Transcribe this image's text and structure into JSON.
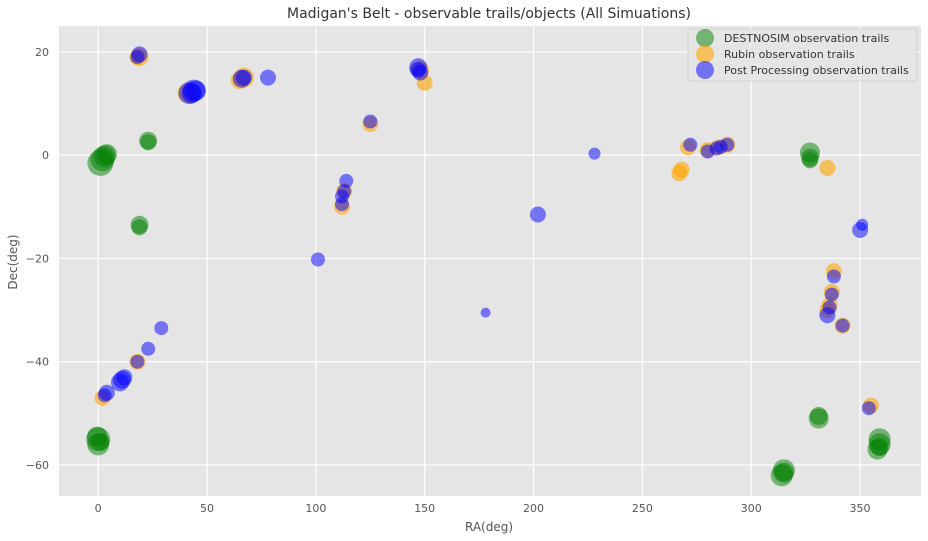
{
  "chart_data": {
    "type": "scatter",
    "title": "Madigan's Belt - observable trails/objects (All Simuations)",
    "xlabel": "RA(deg)",
    "ylabel": "Dec(deg)",
    "xlim": [
      -18,
      378
    ],
    "ylim": [
      -66,
      25
    ],
    "xticks": [
      0,
      50,
      100,
      150,
      200,
      250,
      300,
      350
    ],
    "yticks": [
      -60,
      -40,
      -20,
      0,
      20
    ],
    "grid": true,
    "legend_position": "top-right",
    "series": [
      {
        "name": "DESTNOSIM observation trails",
        "color": "#008000",
        "alpha": 0.5,
        "points": [
          [
            1,
            -1.5,
            13
          ],
          [
            2,
            -0.8,
            12
          ],
          [
            3,
            -0.2,
            11
          ],
          [
            4,
            0.2,
            10
          ],
          [
            23,
            2.8,
            9
          ],
          [
            23,
            2.5,
            8
          ],
          [
            19,
            -13.5,
            9
          ],
          [
            19,
            -14,
            8
          ],
          [
            0,
            -55,
            12
          ],
          [
            0,
            -56,
            11
          ],
          [
            -0.5,
            -54.5,
            10
          ],
          [
            1,
            -55.5,
            9
          ],
          [
            327,
            0.5,
            10
          ],
          [
            327,
            -0.5,
            9
          ],
          [
            327,
            -1,
            8
          ],
          [
            331,
            -51,
            10
          ],
          [
            331,
            -50.5,
            9
          ],
          [
            315,
            -61,
            11
          ],
          [
            314,
            -62,
            11
          ],
          [
            315,
            -61.5,
            10
          ],
          [
            359,
            -55,
            11
          ],
          [
            359,
            -56,
            11
          ],
          [
            358,
            -57,
            10
          ],
          [
            359,
            -56.5,
            9
          ]
        ]
      },
      {
        "name": "Rubin observation trails",
        "color": "#FFA500",
        "alpha": 0.6,
        "points": [
          [
            2,
            -47,
            8
          ],
          [
            18,
            -40,
            8
          ],
          [
            19,
            19,
            9
          ],
          [
            18,
            19,
            8
          ],
          [
            41,
            12,
            10
          ],
          [
            67,
            15,
            10
          ],
          [
            65,
            14.5,
            9
          ],
          [
            148,
            16.5,
            9
          ],
          [
            150,
            14,
            8
          ],
          [
            112,
            -10,
            8
          ],
          [
            113,
            -7,
            8
          ],
          [
            125,
            6,
            8
          ],
          [
            267,
            -3.5,
            8
          ],
          [
            268,
            -2.8,
            8
          ],
          [
            271,
            1.5,
            8
          ],
          [
            280,
            1,
            8
          ],
          [
            285,
            1.5,
            8
          ],
          [
            289,
            2,
            8
          ],
          [
            335,
            -2.5,
            8
          ],
          [
            338,
            -22.5,
            8
          ],
          [
            336,
            -29,
            8
          ],
          [
            337,
            -26.5,
            8
          ],
          [
            335,
            -30,
            8
          ],
          [
            342,
            -33,
            8
          ],
          [
            355,
            -48.5,
            8
          ]
        ]
      },
      {
        "name": "Post Processing observation trails",
        "color": "#0000FF",
        "alpha": 0.5,
        "points": [
          [
            4,
            -46,
            8
          ],
          [
            3,
            -46.5,
            7
          ],
          [
            10,
            -44,
            9
          ],
          [
            11,
            -43.5,
            9
          ],
          [
            12,
            -43,
            8
          ],
          [
            18,
            -40,
            7
          ],
          [
            23,
            -37.5,
            7
          ],
          [
            29,
            -33.5,
            7
          ],
          [
            19,
            19.5,
            8
          ],
          [
            18,
            19,
            7
          ],
          [
            42,
            12,
            11
          ],
          [
            44,
            12.5,
            11
          ],
          [
            43,
            12,
            10
          ],
          [
            45,
            12.5,
            10
          ],
          [
            66,
            14.8,
            9
          ],
          [
            67,
            15,
            8
          ],
          [
            78,
            15,
            8
          ],
          [
            147,
            17,
            9
          ],
          [
            147,
            16.5,
            8
          ],
          [
            148,
            16,
            8
          ],
          [
            114,
            -5,
            7
          ],
          [
            113,
            -7,
            7
          ],
          [
            112,
            -8,
            7
          ],
          [
            112,
            -9.5,
            7
          ],
          [
            125,
            6.5,
            7
          ],
          [
            101,
            -20.2,
            7
          ],
          [
            178,
            -30.5,
            5
          ],
          [
            202,
            -11.5,
            8
          ],
          [
            228,
            0.3,
            6
          ],
          [
            272,
            2,
            7
          ],
          [
            280,
            0.7,
            7
          ],
          [
            284,
            1.3,
            7
          ],
          [
            286,
            1.6,
            7
          ],
          [
            289,
            2,
            7
          ],
          [
            338,
            -23.5,
            7
          ],
          [
            337,
            -27,
            7
          ],
          [
            336,
            -29.5,
            7
          ],
          [
            335,
            -31,
            8
          ],
          [
            342,
            -33,
            7
          ],
          [
            350,
            -14.5,
            8
          ],
          [
            351,
            -13.5,
            6
          ],
          [
            354,
            -49,
            7
          ]
        ]
      }
    ]
  }
}
